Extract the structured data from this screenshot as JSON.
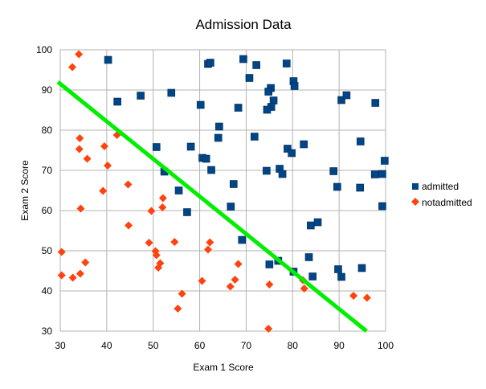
{
  "chart_data": {
    "type": "scatter",
    "title": "Admission Data",
    "xlabel": "Exam 1 Score",
    "ylabel": "Exam 2 Score",
    "xlim": [
      30,
      100
    ],
    "ylim": [
      30,
      100
    ],
    "xticks": [
      30,
      40,
      50,
      60,
      70,
      80,
      90,
      100
    ],
    "yticks": [
      30,
      40,
      50,
      60,
      70,
      80,
      90,
      100
    ],
    "grid": true,
    "legend_position": "right",
    "series": [
      {
        "name": "admitted",
        "marker": "square",
        "color": "#004586",
        "points": [
          [
            40.3,
            97.5
          ],
          [
            61.8,
            96.5
          ],
          [
            62.3,
            96.8
          ],
          [
            69.4,
            97.7
          ],
          [
            72.2,
            96.2
          ],
          [
            78.7,
            96.6
          ],
          [
            70.7,
            93.0
          ],
          [
            75.3,
            90.5
          ],
          [
            80.2,
            92.2
          ],
          [
            80.4,
            91.0
          ],
          [
            74.8,
            89.6
          ],
          [
            47.3,
            88.6
          ],
          [
            42.3,
            87.1
          ],
          [
            53.9,
            89.3
          ],
          [
            60.2,
            86.3
          ],
          [
            68.3,
            85.6
          ],
          [
            75.9,
            87.4
          ],
          [
            75.4,
            85.8
          ],
          [
            74.5,
            85.1
          ],
          [
            90.5,
            87.5
          ],
          [
            91.6,
            88.7
          ],
          [
            97.8,
            86.8
          ],
          [
            64.2,
            80.9
          ],
          [
            64.0,
            78.1
          ],
          [
            71.8,
            78.4
          ],
          [
            58.1,
            75.9
          ],
          [
            50.7,
            75.8
          ],
          [
            60.6,
            73.1
          ],
          [
            61.4,
            72.9
          ],
          [
            78.9,
            75.4
          ],
          [
            79.8,
            74.3
          ],
          [
            82.4,
            76.5
          ],
          [
            94.6,
            77.2
          ],
          [
            52.4,
            69.7
          ],
          [
            62.5,
            70.1
          ],
          [
            74.4,
            69.9
          ],
          [
            77.2,
            70.4
          ],
          [
            77.8,
            69.1
          ],
          [
            88.8,
            69.8
          ],
          [
            97.7,
            69.0
          ],
          [
            99.3,
            69.1
          ],
          [
            99.8,
            72.4
          ],
          [
            67.3,
            66.6
          ],
          [
            89.6,
            65.9
          ],
          [
            94.5,
            65.7
          ],
          [
            55.5,
            65.0
          ],
          [
            57.3,
            59.6
          ],
          [
            66.7,
            61.0
          ],
          [
            99.3,
            61.1
          ],
          [
            83.9,
            56.3
          ],
          [
            85.4,
            57.1
          ],
          [
            69.1,
            52.7
          ],
          [
            75.0,
            46.6
          ],
          [
            76.9,
            47.5
          ],
          [
            80.2,
            44.8
          ],
          [
            83.5,
            48.4
          ],
          [
            84.3,
            43.6
          ],
          [
            89.8,
            45.4
          ],
          [
            90.5,
            43.5
          ],
          [
            94.9,
            45.7
          ]
        ]
      },
      {
        "name": "notadmitted",
        "marker": "diamond",
        "color": "#ff420e",
        "points": [
          [
            34.0,
            98.9
          ],
          [
            32.6,
            95.7
          ],
          [
            34.2,
            78.0
          ],
          [
            34.1,
            75.3
          ],
          [
            35.8,
            72.9
          ],
          [
            42.2,
            78.8
          ],
          [
            39.5,
            76.0
          ],
          [
            40.2,
            71.2
          ],
          [
            39.2,
            64.9
          ],
          [
            44.6,
            66.5
          ],
          [
            34.4,
            60.5
          ],
          [
            44.7,
            56.3
          ],
          [
            49.6,
            59.9
          ],
          [
            52.0,
            60.8
          ],
          [
            52.1,
            63.1
          ],
          [
            49.1,
            52.0
          ],
          [
            54.6,
            52.2
          ],
          [
            50.5,
            49.9
          ],
          [
            50.7,
            48.9
          ],
          [
            51.5,
            46.9
          ],
          [
            51.1,
            45.8
          ],
          [
            62.2,
            52.1
          ],
          [
            61.8,
            50.3
          ],
          [
            68.3,
            46.7
          ],
          [
            30.3,
            49.7
          ],
          [
            30.3,
            43.9
          ],
          [
            32.7,
            43.3
          ],
          [
            34.3,
            44.3
          ],
          [
            35.4,
            47.1
          ],
          [
            56.2,
            39.3
          ],
          [
            55.3,
            35.6
          ],
          [
            60.5,
            42.5
          ],
          [
            66.6,
            41.1
          ],
          [
            67.6,
            42.8
          ],
          [
            75.0,
            41.6
          ],
          [
            82.2,
            42.7
          ],
          [
            82.5,
            40.6
          ],
          [
            74.8,
            30.6
          ],
          [
            93.1,
            38.8
          ],
          [
            96.0,
            38.3
          ]
        ]
      }
    ],
    "decision_boundary": {
      "name": "decision boundary",
      "color": "#00ee00",
      "points": [
        [
          29.5,
          92.0
        ],
        [
          95.9,
          30.0
        ]
      ]
    }
  }
}
